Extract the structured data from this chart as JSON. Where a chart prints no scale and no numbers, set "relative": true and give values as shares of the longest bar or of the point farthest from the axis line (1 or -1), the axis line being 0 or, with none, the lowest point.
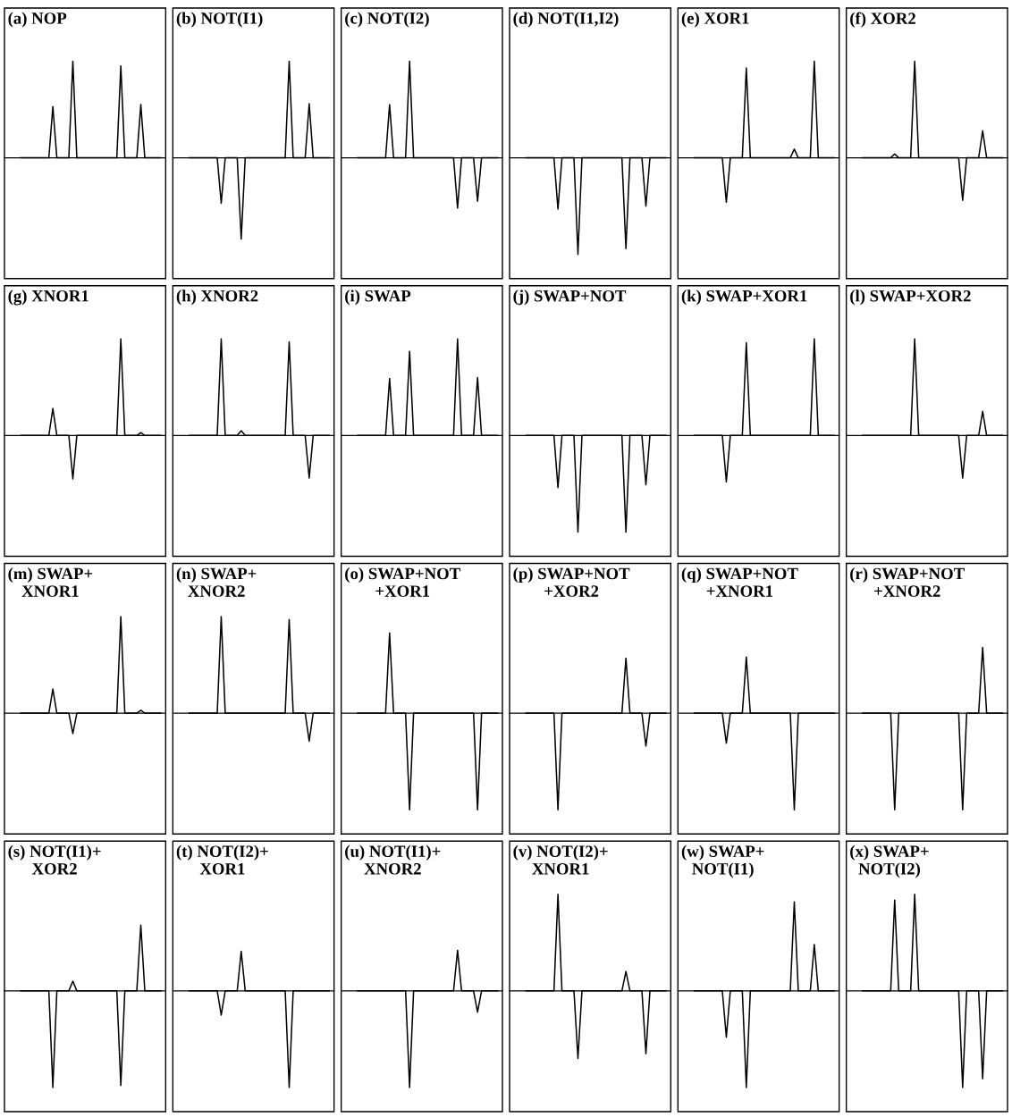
{
  "chart_data": [
    {
      "type": "line",
      "title": "(a) NOP",
      "relative": true,
      "tick_labels": false,
      "categories": [
        null,
        null,
        null,
        null,
        null,
        null,
        null,
        null,
        null,
        null,
        null,
        null,
        null,
        null,
        null,
        null,
        null,
        null,
        null,
        null,
        null,
        null,
        null,
        null,
        null,
        null,
        null,
        null,
        null,
        null,
        null,
        null,
        null,
        null,
        null,
        null
      ],
      "series": [
        {
          "color": "#000000",
          "values": [
            0,
            0,
            0,
            0,
            0,
            0,
            0,
            0,
            0.53,
            0,
            0,
            0,
            0,
            1,
            0,
            0,
            0,
            0,
            0,
            0,
            0,
            0,
            0,
            0,
            0,
            0.95,
            0,
            0,
            0,
            0,
            0.55,
            0,
            0,
            0,
            0,
            0
          ]
        }
      ]
    },
    {
      "type": "line",
      "title": "(b) NOT(I1)",
      "relative": true,
      "tick_labels": false,
      "categories": [
        null,
        null,
        null,
        null,
        null,
        null,
        null,
        null,
        null,
        null,
        null,
        null,
        null,
        null,
        null,
        null,
        null,
        null,
        null,
        null,
        null,
        null,
        null,
        null,
        null,
        null,
        null,
        null,
        null,
        null,
        null,
        null,
        null,
        null,
        null,
        null
      ],
      "series": [
        {
          "color": "#000000",
          "values": [
            0,
            0,
            0,
            0,
            0,
            0,
            0,
            0,
            -0.47,
            0,
            0,
            0,
            0,
            -0.84,
            0,
            0,
            0,
            0,
            0,
            0,
            0,
            0,
            0,
            0,
            0,
            1,
            0,
            0,
            0,
            0,
            0.56,
            0,
            0,
            0,
            0,
            0
          ]
        }
      ]
    },
    {
      "type": "line",
      "title": "(c) NOT(I2)",
      "relative": true,
      "tick_labels": false,
      "categories": [
        null,
        null,
        null,
        null,
        null,
        null,
        null,
        null,
        null,
        null,
        null,
        null,
        null,
        null,
        null,
        null,
        null,
        null,
        null,
        null,
        null,
        null,
        null,
        null,
        null,
        null,
        null,
        null,
        null,
        null,
        null,
        null,
        null,
        null,
        null,
        null
      ],
      "series": [
        {
          "color": "#000000",
          "values": [
            0,
            0,
            0,
            0,
            0,
            0,
            0,
            0,
            0.55,
            0,
            0,
            0,
            0,
            1,
            0,
            0,
            0,
            0,
            0,
            0,
            0,
            0,
            0,
            0,
            0,
            -0.52,
            0,
            0,
            0,
            0,
            -0.45,
            0,
            0,
            0,
            0,
            0
          ]
        }
      ]
    },
    {
      "type": "line",
      "title": "(d) NOT(I1,I2)",
      "relative": true,
      "tick_labels": false,
      "categories": [
        null,
        null,
        null,
        null,
        null,
        null,
        null,
        null,
        null,
        null,
        null,
        null,
        null,
        null,
        null,
        null,
        null,
        null,
        null,
        null,
        null,
        null,
        null,
        null,
        null,
        null,
        null,
        null,
        null,
        null,
        null,
        null,
        null,
        null,
        null,
        null
      ],
      "series": [
        {
          "color": "#000000",
          "values": [
            0,
            0,
            0,
            0,
            0,
            0,
            0,
            0,
            -0.53,
            0,
            0,
            0,
            0,
            -1,
            0,
            0,
            0,
            0,
            0,
            0,
            0,
            0,
            0,
            0,
            0,
            -0.94,
            0,
            0,
            0,
            0,
            -0.5,
            0,
            0,
            0,
            0,
            0
          ]
        }
      ]
    },
    {
      "type": "line",
      "title": "(e) XOR1",
      "relative": true,
      "tick_labels": false,
      "categories": [
        null,
        null,
        null,
        null,
        null,
        null,
        null,
        null,
        null,
        null,
        null,
        null,
        null,
        null,
        null,
        null,
        null,
        null,
        null,
        null,
        null,
        null,
        null,
        null,
        null,
        null,
        null,
        null,
        null,
        null,
        null,
        null,
        null,
        null,
        null,
        null
      ],
      "series": [
        {
          "color": "#000000",
          "values": [
            0,
            0,
            0,
            0,
            0,
            0,
            0,
            0,
            -0.46,
            0,
            0,
            0,
            0,
            0.93,
            0,
            0,
            0,
            0,
            0,
            0,
            0,
            0,
            0,
            0,
            0,
            0.09,
            0,
            0,
            0,
            0,
            1,
            0,
            0,
            0,
            0,
            0
          ]
        }
      ]
    },
    {
      "type": "line",
      "title": "(f) XOR2",
      "relative": true,
      "tick_labels": false,
      "categories": [
        null,
        null,
        null,
        null,
        null,
        null,
        null,
        null,
        null,
        null,
        null,
        null,
        null,
        null,
        null,
        null,
        null,
        null,
        null,
        null,
        null,
        null,
        null,
        null,
        null,
        null,
        null,
        null,
        null,
        null,
        null,
        null,
        null,
        null,
        null,
        null
      ],
      "series": [
        {
          "color": "#000000",
          "values": [
            0,
            0,
            0,
            0,
            0,
            0,
            0,
            0,
            0.04,
            0,
            0,
            0,
            0,
            1,
            0,
            0,
            0,
            0,
            0,
            0,
            0,
            0,
            0,
            0,
            0,
            -0.44,
            0,
            0,
            0,
            0,
            0.28,
            0,
            0,
            0,
            0,
            0
          ]
        }
      ]
    },
    {
      "type": "line",
      "title": "(g) XNOR1",
      "relative": true,
      "tick_labels": false,
      "categories": [
        null,
        null,
        null,
        null,
        null,
        null,
        null,
        null,
        null,
        null,
        null,
        null,
        null,
        null,
        null,
        null,
        null,
        null,
        null,
        null,
        null,
        null,
        null,
        null,
        null,
        null,
        null,
        null,
        null,
        null,
        null,
        null,
        null,
        null,
        null,
        null
      ],
      "series": [
        {
          "color": "#000000",
          "values": [
            0,
            0,
            0,
            0,
            0,
            0,
            0,
            0,
            0.28,
            0,
            0,
            0,
            0,
            -0.45,
            0,
            0,
            0,
            0,
            0,
            0,
            0,
            0,
            0,
            0,
            0,
            1,
            0,
            0,
            0,
            0,
            0.03,
            0,
            0,
            0,
            0,
            0
          ]
        }
      ]
    },
    {
      "type": "line",
      "title": "(h) XNOR2",
      "relative": true,
      "tick_labels": false,
      "categories": [
        null,
        null,
        null,
        null,
        null,
        null,
        null,
        null,
        null,
        null,
        null,
        null,
        null,
        null,
        null,
        null,
        null,
        null,
        null,
        null,
        null,
        null,
        null,
        null,
        null,
        null,
        null,
        null,
        null,
        null,
        null,
        null,
        null,
        null,
        null,
        null
      ],
      "series": [
        {
          "color": "#000000",
          "values": [
            0,
            0,
            0,
            0,
            0,
            0,
            0,
            0,
            1,
            0,
            0,
            0,
            0,
            0.05,
            0,
            0,
            0,
            0,
            0,
            0,
            0,
            0,
            0,
            0,
            0,
            0.97,
            0,
            0,
            0,
            0,
            -0.44,
            0,
            0,
            0,
            0,
            0
          ]
        }
      ]
    },
    {
      "type": "line",
      "title": "(i) SWAP",
      "relative": true,
      "tick_labels": false,
      "categories": [
        null,
        null,
        null,
        null,
        null,
        null,
        null,
        null,
        null,
        null,
        null,
        null,
        null,
        null,
        null,
        null,
        null,
        null,
        null,
        null,
        null,
        null,
        null,
        null,
        null,
        null,
        null,
        null,
        null,
        null,
        null,
        null,
        null,
        null,
        null,
        null
      ],
      "series": [
        {
          "color": "#000000",
          "values": [
            0,
            0,
            0,
            0,
            0,
            0,
            0,
            0,
            0.59,
            0,
            0,
            0,
            0,
            0.87,
            0,
            0,
            0,
            0,
            0,
            0,
            0,
            0,
            0,
            0,
            0,
            1,
            0,
            0,
            0,
            0,
            0.6,
            0,
            0,
            0,
            0,
            0
          ]
        }
      ]
    },
    {
      "type": "line",
      "title": "(j) SWAP+NOT",
      "relative": true,
      "tick_labels": false,
      "categories": [
        null,
        null,
        null,
        null,
        null,
        null,
        null,
        null,
        null,
        null,
        null,
        null,
        null,
        null,
        null,
        null,
        null,
        null,
        null,
        null,
        null,
        null,
        null,
        null,
        null,
        null,
        null,
        null,
        null,
        null,
        null,
        null,
        null,
        null,
        null,
        null
      ],
      "series": [
        {
          "color": "#000000",
          "values": [
            0,
            0,
            0,
            0,
            0,
            0,
            0,
            0,
            -0.54,
            0,
            0,
            0,
            0,
            -1,
            0,
            0,
            0,
            0,
            0,
            0,
            0,
            0,
            0,
            0,
            0,
            -1,
            0,
            0,
            0,
            0,
            -0.51,
            0,
            0,
            0,
            0,
            0
          ]
        }
      ]
    },
    {
      "type": "line",
      "title": "(k) SWAP+XOR1",
      "relative": true,
      "tick_labels": false,
      "categories": [
        null,
        null,
        null,
        null,
        null,
        null,
        null,
        null,
        null,
        null,
        null,
        null,
        null,
        null,
        null,
        null,
        null,
        null,
        null,
        null,
        null,
        null,
        null,
        null,
        null,
        null,
        null,
        null,
        null,
        null,
        null,
        null,
        null,
        null,
        null,
        null
      ],
      "series": [
        {
          "color": "#000000",
          "values": [
            0,
            0,
            0,
            0,
            0,
            0,
            0,
            0,
            -0.48,
            0,
            0,
            0,
            0,
            0.96,
            0,
            0,
            0,
            0,
            0,
            0,
            0,
            0,
            0,
            0,
            0,
            0,
            0,
            0,
            0,
            0,
            1,
            0,
            0,
            0,
            0,
            0
          ]
        }
      ]
    },
    {
      "type": "line",
      "title": "(l) SWAP+XOR2",
      "relative": true,
      "tick_labels": false,
      "categories": [
        null,
        null,
        null,
        null,
        null,
        null,
        null,
        null,
        null,
        null,
        null,
        null,
        null,
        null,
        null,
        null,
        null,
        null,
        null,
        null,
        null,
        null,
        null,
        null,
        null,
        null,
        null,
        null,
        null,
        null,
        null,
        null,
        null,
        null,
        null,
        null
      ],
      "series": [
        {
          "color": "#000000",
          "values": [
            0,
            0,
            0,
            0,
            0,
            0,
            0,
            0,
            0,
            0,
            0,
            0,
            0,
            1,
            0,
            0,
            0,
            0,
            0,
            0,
            0,
            0,
            0,
            0,
            0,
            -0.44,
            0,
            0,
            0,
            0,
            0.25,
            0,
            0,
            0,
            0,
            0
          ]
        }
      ]
    },
    {
      "type": "line",
      "title": "(m) SWAP+\nXNOR1",
      "relative": true,
      "tick_labels": false,
      "categories": [
        null,
        null,
        null,
        null,
        null,
        null,
        null,
        null,
        null,
        null,
        null,
        null,
        null,
        null,
        null,
        null,
        null,
        null,
        null,
        null,
        null,
        null,
        null,
        null,
        null,
        null,
        null,
        null,
        null,
        null,
        null,
        null,
        null,
        null,
        null,
        null
      ],
      "series": [
        {
          "color": "#000000",
          "values": [
            0,
            0,
            0,
            0,
            0,
            0,
            0,
            0,
            0.25,
            0,
            0,
            0,
            0,
            -0.21,
            0,
            0,
            0,
            0,
            0,
            0,
            0,
            0,
            0,
            0,
            0,
            1,
            0,
            0,
            0,
            0,
            0.03,
            0,
            0,
            0,
            0,
            0
          ]
        }
      ]
    },
    {
      "type": "line",
      "title": "(n) SWAP+\nXNOR2",
      "relative": true,
      "tick_labels": false,
      "categories": [
        null,
        null,
        null,
        null,
        null,
        null,
        null,
        null,
        null,
        null,
        null,
        null,
        null,
        null,
        null,
        null,
        null,
        null,
        null,
        null,
        null,
        null,
        null,
        null,
        null,
        null,
        null,
        null,
        null,
        null,
        null,
        null,
        null,
        null,
        null,
        null
      ],
      "series": [
        {
          "color": "#000000",
          "values": [
            0,
            0,
            0,
            0,
            0,
            0,
            0,
            0,
            1,
            0,
            0,
            0,
            0,
            0,
            0,
            0,
            0,
            0,
            0,
            0,
            0,
            0,
            0,
            0,
            0,
            0.97,
            0,
            0,
            0,
            0,
            -0.29,
            0,
            0,
            0,
            0,
            0
          ]
        }
      ]
    },
    {
      "type": "line",
      "title": "(o) SWAP+NOT\n+XOR1",
      "relative": true,
      "tick_labels": false,
      "categories": [
        null,
        null,
        null,
        null,
        null,
        null,
        null,
        null,
        null,
        null,
        null,
        null,
        null,
        null,
        null,
        null,
        null,
        null,
        null,
        null,
        null,
        null,
        null,
        null,
        null,
        null,
        null,
        null,
        null,
        null,
        null,
        null,
        null,
        null,
        null,
        null
      ],
      "series": [
        {
          "color": "#000000",
          "values": [
            0,
            0,
            0,
            0,
            0,
            0,
            0,
            0,
            0.83,
            0,
            0,
            0,
            0,
            -1,
            0,
            0,
            0,
            0,
            0,
            0,
            0,
            0,
            0,
            0,
            0,
            0,
            0,
            0,
            0,
            0,
            -1,
            0,
            0,
            0,
            0,
            0
          ]
        }
      ]
    },
    {
      "type": "line",
      "title": "(p) SWAP+NOT\n+XOR2",
      "relative": true,
      "tick_labels": false,
      "categories": [
        null,
        null,
        null,
        null,
        null,
        null,
        null,
        null,
        null,
        null,
        null,
        null,
        null,
        null,
        null,
        null,
        null,
        null,
        null,
        null,
        null,
        null,
        null,
        null,
        null,
        null,
        null,
        null,
        null,
        null,
        null,
        null,
        null,
        null,
        null,
        null
      ],
      "series": [
        {
          "color": "#000000",
          "values": [
            0,
            0,
            0,
            0,
            0,
            0,
            0,
            0,
            -1,
            0,
            0,
            0,
            0,
            0,
            0,
            0,
            0,
            0,
            0,
            0,
            0,
            0,
            0,
            0,
            0,
            0.57,
            0,
            0,
            0,
            0,
            -0.34,
            0,
            0,
            0,
            0,
            0
          ]
        }
      ]
    },
    {
      "type": "line",
      "title": "(q) SWAP+NOT\n+XNOR1",
      "relative": true,
      "tick_labels": false,
      "categories": [
        null,
        null,
        null,
        null,
        null,
        null,
        null,
        null,
        null,
        null,
        null,
        null,
        null,
        null,
        null,
        null,
        null,
        null,
        null,
        null,
        null,
        null,
        null,
        null,
        null,
        null,
        null,
        null,
        null,
        null,
        null,
        null,
        null,
        null,
        null,
        null
      ],
      "series": [
        {
          "color": "#000000",
          "values": [
            0,
            0,
            0,
            0,
            0,
            0,
            0,
            0,
            -0.31,
            0,
            0,
            0,
            0,
            0.58,
            0,
            0,
            0,
            0,
            0,
            0,
            0,
            0,
            0,
            0,
            0,
            -1,
            0,
            0,
            0,
            0,
            0,
            0,
            0,
            0,
            0,
            0
          ]
        }
      ]
    },
    {
      "type": "line",
      "title": "(r) SWAP+NOT\n+XNOR2",
      "relative": true,
      "tick_labels": false,
      "categories": [
        null,
        null,
        null,
        null,
        null,
        null,
        null,
        null,
        null,
        null,
        null,
        null,
        null,
        null,
        null,
        null,
        null,
        null,
        null,
        null,
        null,
        null,
        null,
        null,
        null,
        null,
        null,
        null,
        null,
        null,
        null,
        null,
        null,
        null,
        null,
        null
      ],
      "series": [
        {
          "color": "#000000",
          "values": [
            0,
            0,
            0,
            0,
            0,
            0,
            0,
            0,
            -1,
            0,
            0,
            0,
            0,
            0,
            0,
            0,
            0,
            0,
            0,
            0,
            0,
            0,
            0,
            0,
            0,
            -1,
            0,
            0,
            0,
            0,
            0.68,
            0,
            0,
            0,
            0,
            0
          ]
        }
      ]
    },
    {
      "type": "line",
      "title": "(s) NOT(I1)+\nXOR2",
      "relative": true,
      "tick_labels": false,
      "categories": [
        null,
        null,
        null,
        null,
        null,
        null,
        null,
        null,
        null,
        null,
        null,
        null,
        null,
        null,
        null,
        null,
        null,
        null,
        null,
        null,
        null,
        null,
        null,
        null,
        null,
        null,
        null,
        null,
        null,
        null,
        null,
        null,
        null,
        null,
        null,
        null
      ],
      "series": [
        {
          "color": "#000000",
          "values": [
            0,
            0,
            0,
            0,
            0,
            0,
            0,
            0,
            -1,
            0,
            0,
            0,
            0,
            0.1,
            0,
            0,
            0,
            0,
            0,
            0,
            0,
            0,
            0,
            0,
            0,
            -0.98,
            0,
            0,
            0,
            0,
            0.68,
            0,
            0,
            0,
            0,
            0
          ]
        }
      ]
    },
    {
      "type": "line",
      "title": "(t) NOT(I2)+\nXOR1",
      "relative": true,
      "tick_labels": false,
      "categories": [
        null,
        null,
        null,
        null,
        null,
        null,
        null,
        null,
        null,
        null,
        null,
        null,
        null,
        null,
        null,
        null,
        null,
        null,
        null,
        null,
        null,
        null,
        null,
        null,
        null,
        null,
        null,
        null,
        null,
        null,
        null,
        null,
        null,
        null,
        null,
        null
      ],
      "series": [
        {
          "color": "#000000",
          "values": [
            0,
            0,
            0,
            0,
            0,
            0,
            0,
            0,
            -0.25,
            0,
            0,
            0,
            0,
            0.41,
            0,
            0,
            0,
            0,
            0,
            0,
            0,
            0,
            0,
            0,
            0,
            -1,
            0,
            0,
            0,
            0,
            0,
            0,
            0,
            0,
            0,
            0
          ]
        }
      ]
    },
    {
      "type": "line",
      "title": "(u) NOT(I1)+\nXNOR2",
      "relative": true,
      "tick_labels": false,
      "categories": [
        null,
        null,
        null,
        null,
        null,
        null,
        null,
        null,
        null,
        null,
        null,
        null,
        null,
        null,
        null,
        null,
        null,
        null,
        null,
        null,
        null,
        null,
        null,
        null,
        null,
        null,
        null,
        null,
        null,
        null,
        null,
        null,
        null,
        null,
        null,
        null
      ],
      "series": [
        {
          "color": "#000000",
          "values": [
            0,
            0,
            0,
            0,
            0,
            0,
            0,
            0,
            0,
            0,
            0,
            0,
            0,
            -1,
            0,
            0,
            0,
            0,
            0,
            0,
            0,
            0,
            0,
            0,
            0,
            0.42,
            0,
            0,
            0,
            0,
            -0.22,
            0,
            0,
            0,
            0,
            0
          ]
        }
      ]
    },
    {
      "type": "line",
      "title": "(v) NOT(I2)+\nXNOR1",
      "relative": true,
      "tick_labels": false,
      "categories": [
        null,
        null,
        null,
        null,
        null,
        null,
        null,
        null,
        null,
        null,
        null,
        null,
        null,
        null,
        null,
        null,
        null,
        null,
        null,
        null,
        null,
        null,
        null,
        null,
        null,
        null,
        null,
        null,
        null,
        null,
        null,
        null,
        null,
        null,
        null,
        null
      ],
      "series": [
        {
          "color": "#000000",
          "values": [
            0,
            0,
            0,
            0,
            0,
            0,
            0,
            0,
            1,
            0,
            0,
            0,
            0,
            -0.7,
            0,
            0,
            0,
            0,
            0,
            0,
            0,
            0,
            0,
            0,
            0,
            0.2,
            0,
            0,
            0,
            0,
            -0.65,
            0,
            0,
            0,
            0,
            0
          ]
        }
      ]
    },
    {
      "type": "line",
      "title": "(w) SWAP+\nNOT(I1)",
      "relative": true,
      "tick_labels": false,
      "categories": [
        null,
        null,
        null,
        null,
        null,
        null,
        null,
        null,
        null,
        null,
        null,
        null,
        null,
        null,
        null,
        null,
        null,
        null,
        null,
        null,
        null,
        null,
        null,
        null,
        null,
        null,
        null,
        null,
        null,
        null,
        null,
        null,
        null,
        null,
        null,
        null
      ],
      "series": [
        {
          "color": "#000000",
          "values": [
            0,
            0,
            0,
            0,
            0,
            0,
            0,
            0,
            -0.48,
            0,
            0,
            0,
            0,
            -1,
            0,
            0,
            0,
            0,
            0,
            0,
            0,
            0,
            0,
            0,
            0,
            0.92,
            0,
            0,
            0,
            0,
            0.48,
            0,
            0,
            0,
            0,
            0
          ]
        }
      ]
    },
    {
      "type": "line",
      "title": "(x) SWAP+\nNOT(I2)",
      "relative": true,
      "tick_labels": false,
      "categories": [
        null,
        null,
        null,
        null,
        null,
        null,
        null,
        null,
        null,
        null,
        null,
        null,
        null,
        null,
        null,
        null,
        null,
        null,
        null,
        null,
        null,
        null,
        null,
        null,
        null,
        null,
        null,
        null,
        null,
        null,
        null,
        null,
        null,
        null,
        null,
        null
      ],
      "series": [
        {
          "color": "#000000",
          "values": [
            0,
            0,
            0,
            0,
            0,
            0,
            0,
            0,
            0.94,
            0,
            0,
            0,
            0,
            1,
            0,
            0,
            0,
            0,
            0,
            0,
            0,
            0,
            0,
            0,
            0,
            -1,
            0,
            0,
            0,
            0,
            -0.91,
            0,
            0,
            0,
            0,
            0
          ]
        }
      ]
    }
  ]
}
